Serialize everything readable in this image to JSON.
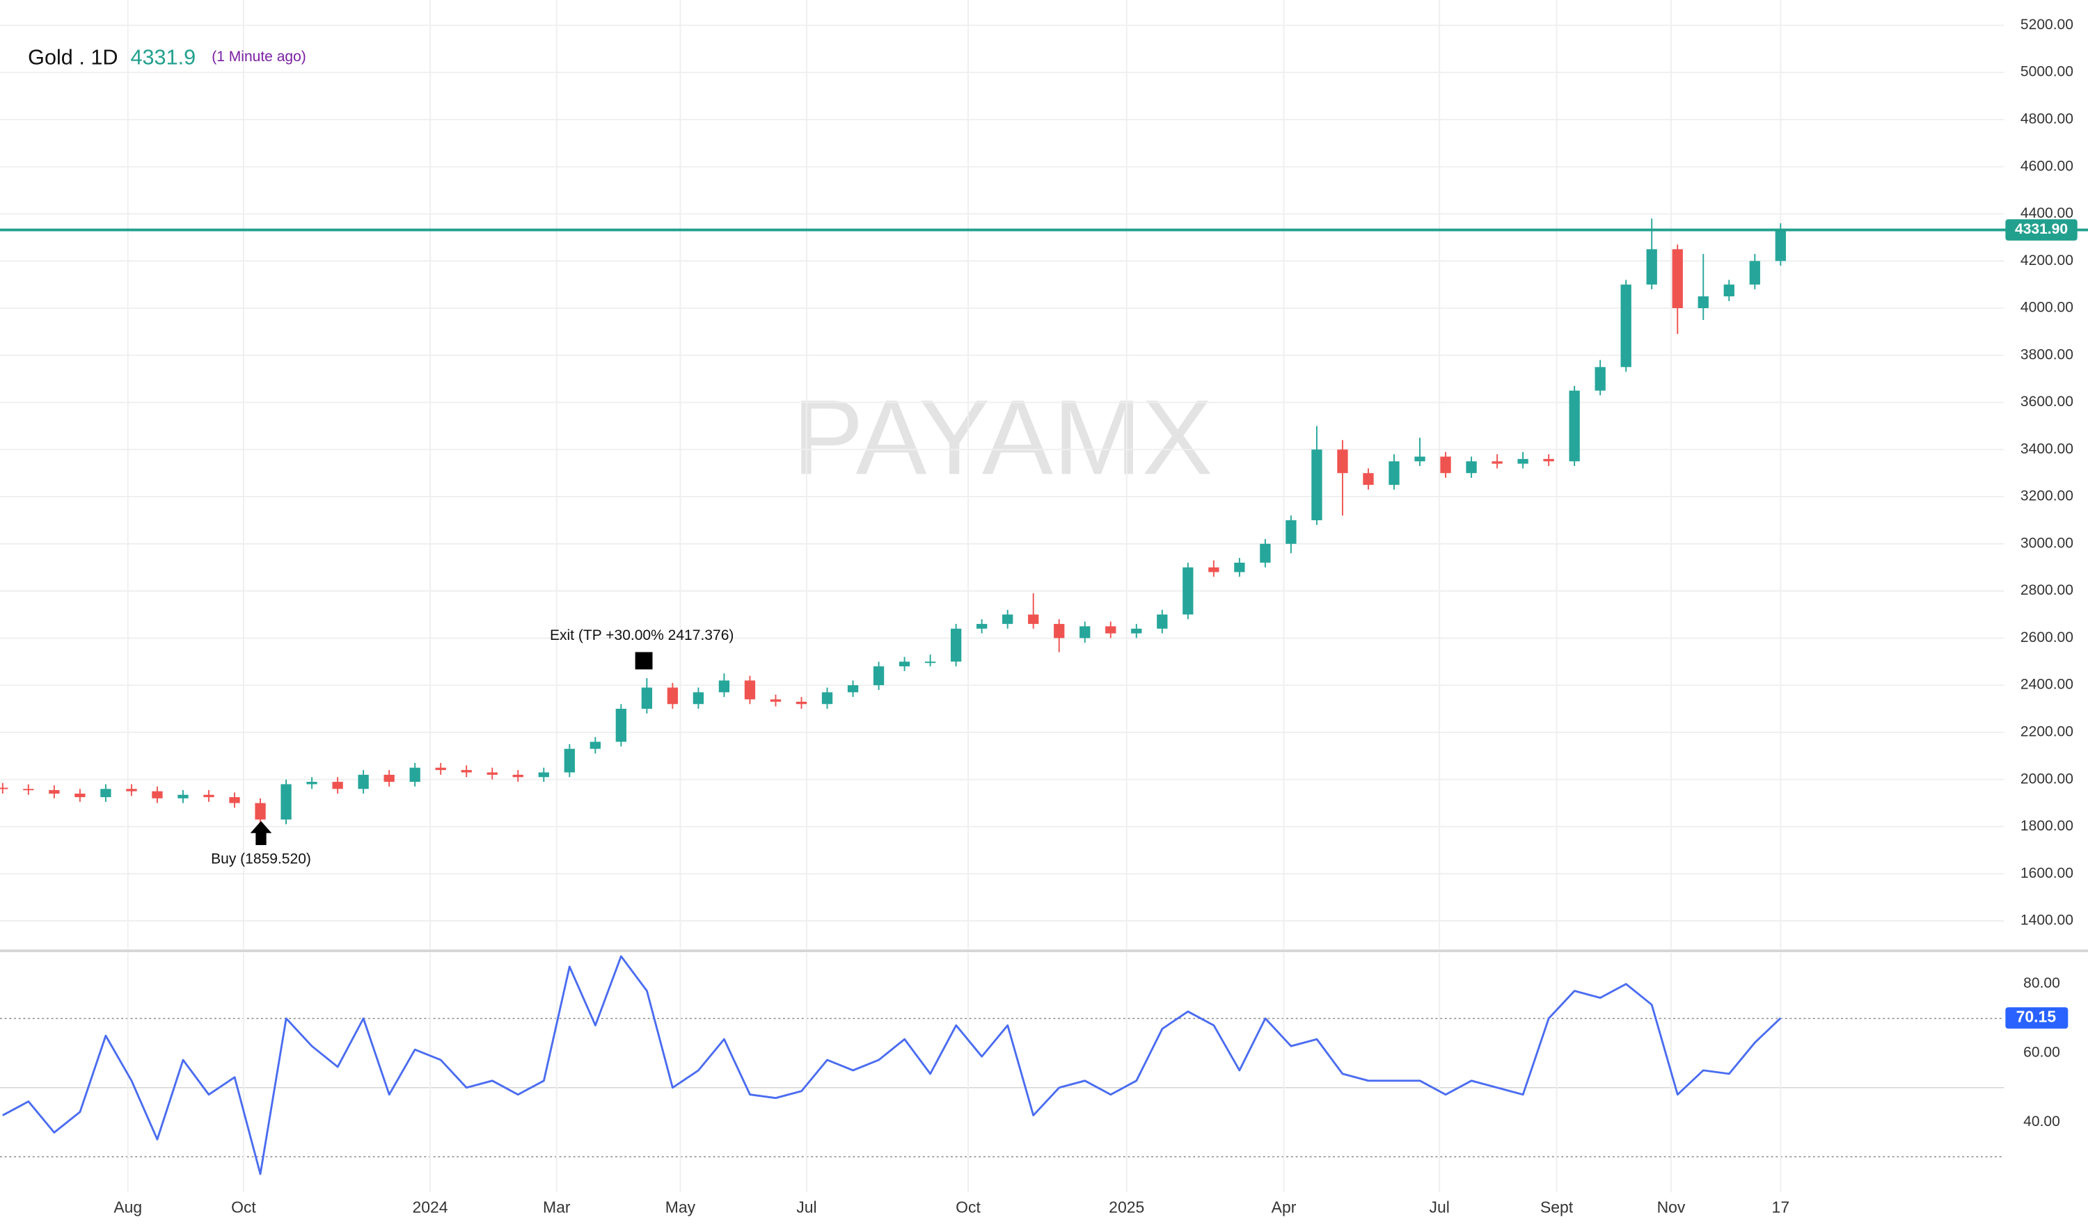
{
  "chart_data": [
    {
      "type": "candlestick",
      "title": "Gold . 1D",
      "last_price": 4331.9,
      "last_update": "(1 Minute ago)",
      "watermark": "PAYAMX",
      "annotations": [
        "Exit (TP +30.00% 2417.376)",
        "Buy (1859.520)"
      ],
      "up_color": "#26a69a",
      "down_color": "#ef5350",
      "grid": true,
      "categories": [
        null,
        null,
        null,
        null,
        null,
        null,
        null,
        null,
        null,
        null,
        null,
        null,
        null,
        null,
        null,
        null,
        null,
        null,
        null,
        null,
        null,
        null,
        null,
        null,
        null,
        null,
        null,
        null,
        null,
        null,
        null,
        null,
        null,
        null,
        null,
        null,
        null,
        null,
        null,
        null,
        null,
        null,
        null,
        null,
        null,
        null,
        null,
        null,
        null,
        null,
        null,
        null,
        null,
        null,
        null,
        null,
        null,
        null,
        null,
        null,
        null,
        null,
        null,
        null,
        null,
        null,
        null,
        null,
        null,
        null
      ],
      "open": [
        1965,
        1960,
        1955,
        1940,
        1925,
        1960,
        1950,
        1920,
        1935,
        1925,
        1900,
        1830,
        1980,
        1990,
        1960,
        2020,
        1990,
        2050,
        2040,
        2030,
        2020,
        2010,
        2030,
        2130,
        2160,
        2300,
        2390,
        2320,
        2370,
        2420,
        2340,
        2330,
        2320,
        2370,
        2400,
        2480,
        2500,
        2500,
        2640,
        2660,
        2700,
        2660,
        2600,
        2650,
        2620,
        2640,
        2700,
        2900,
        2880,
        2920,
        3000,
        3100,
        3400,
        3300,
        3250,
        3350,
        3370,
        3300,
        3350,
        3340,
        3360,
        3350,
        3650,
        3750,
        4100,
        4250,
        4000,
        4050,
        4100,
        4200
      ],
      "high": [
        1985,
        1980,
        1975,
        1960,
        1980,
        1980,
        1970,
        1955,
        1955,
        1945,
        1920,
        2000,
        2010,
        2010,
        2040,
        2040,
        2070,
        2070,
        2060,
        2050,
        2040,
        2050,
        2150,
        2180,
        2320,
        2430,
        2410,
        2390,
        2450,
        2440,
        2360,
        2350,
        2390,
        2420,
        2500,
        2520,
        2530,
        2660,
        2680,
        2720,
        2790,
        2680,
        2670,
        2670,
        2660,
        2720,
        2920,
        2930,
        2940,
        3020,
        3120,
        3500,
        3440,
        3320,
        3380,
        3450,
        3390,
        3370,
        3380,
        3390,
        3380,
        3670,
        3780,
        4120,
        4380,
        4270,
        4230,
        4120,
        4230,
        4360
      ],
      "low": [
        1940,
        1935,
        1920,
        1905,
        1905,
        1930,
        1900,
        1900,
        1905,
        1880,
        1810,
        1810,
        1960,
        1940,
        1940,
        1970,
        1970,
        2020,
        2010,
        2000,
        1990,
        1990,
        2010,
        2110,
        2140,
        2280,
        2300,
        2300,
        2350,
        2320,
        2310,
        2300,
        2300,
        2350,
        2380,
        2460,
        2480,
        2480,
        2620,
        2640,
        2640,
        2540,
        2580,
        2600,
        2600,
        2620,
        2680,
        2860,
        2860,
        2900,
        2960,
        3080,
        3120,
        3230,
        3230,
        3330,
        3280,
        3280,
        3320,
        3320,
        3330,
        3330,
        3630,
        3730,
        4080,
        3890,
        3950,
        4030,
        4080,
        4180
      ],
      "close": [
        1960,
        1955,
        1940,
        1925,
        1960,
        1950,
        1920,
        1935,
        1925,
        1900,
        1830,
        1980,
        1990,
        1960,
        2020,
        1990,
        2050,
        2040,
        2030,
        2020,
        2010,
        2030,
        2130,
        2160,
        2300,
        2390,
        2320,
        2370,
        2420,
        2340,
        2330,
        2320,
        2370,
        2400,
        2480,
        2500,
        2500,
        2640,
        2660,
        2700,
        2660,
        2600,
        2650,
        2620,
        2640,
        2700,
        2900,
        2880,
        2920,
        3000,
        3100,
        3400,
        3300,
        3250,
        3350,
        3370,
        3300,
        3350,
        3340,
        3360,
        3350,
        3650,
        3750,
        4100,
        4250,
        4000,
        4050,
        4100,
        4200,
        4330
      ],
      "price_line": {
        "value": 4331.9,
        "label": "4331.90",
        "color": "#22a08e"
      },
      "ylim": [
        1265,
        5265
      ],
      "yticks": [
        {
          "value": 1400,
          "label": "1400.00"
        },
        {
          "value": 1600,
          "label": "1600.00"
        },
        {
          "value": 1800,
          "label": "1800.00"
        },
        {
          "value": 2000,
          "label": "2000.00"
        },
        {
          "value": 2200,
          "label": "2200.00"
        },
        {
          "value": 2400,
          "label": "2400.00"
        },
        {
          "value": 2600,
          "label": "2600.00"
        },
        {
          "value": 2800,
          "label": "2800.00"
        },
        {
          "value": 3000,
          "label": "3000.00"
        },
        {
          "value": 3200,
          "label": "3200.00"
        },
        {
          "value": 3400,
          "label": "3400.00"
        },
        {
          "value": 3600,
          "label": "3600.00"
        },
        {
          "value": 3800,
          "label": "3800.00"
        },
        {
          "value": 4000,
          "label": "4000.00"
        },
        {
          "value": 4200,
          "label": "4200.00"
        },
        {
          "value": 4400,
          "label": "4400.00"
        },
        {
          "value": 4600,
          "label": "4600.00"
        },
        {
          "value": 4800,
          "label": "4800.00"
        },
        {
          "value": 5000,
          "label": "5000.00"
        },
        {
          "value": 5200,
          "label": "5200.00"
        }
      ]
    },
    {
      "type": "line",
      "color": "#4a6cf0",
      "label_color": "#2962ff",
      "values": [
        42,
        46,
        37,
        43,
        65,
        52,
        35,
        58,
        48,
        53,
        25,
        70,
        62,
        56,
        70,
        48,
        61,
        58,
        50,
        52,
        48,
        52,
        85,
        68,
        88,
        78,
        50,
        55,
        64,
        48,
        47,
        49,
        58,
        55,
        58,
        64,
        54,
        68,
        59,
        68,
        42,
        50,
        52,
        48,
        52,
        67,
        72,
        68,
        55,
        70,
        62,
        64,
        54,
        52,
        52,
        52,
        48,
        52,
        50,
        48,
        70,
        78,
        76,
        80,
        74,
        48,
        55,
        54,
        63,
        70.15
      ],
      "ref_lines": [
        70,
        50,
        30
      ],
      "ylim": [
        22,
        89
      ],
      "yticks": [
        {
          "value": 40,
          "label": "40.00"
        },
        {
          "value": 60,
          "label": "60.00"
        },
        {
          "value": 80,
          "label": "80.00"
        }
      ],
      "xticks": [
        {
          "value": 4.86,
          "label": "Aug"
        },
        {
          "value": 9.35,
          "label": "Oct"
        },
        {
          "value": 16.59,
          "label": "2024"
        },
        {
          "value": 21.5,
          "label": "Mar"
        },
        {
          "value": 26.3,
          "label": "May"
        },
        {
          "value": 31.2,
          "label": "Jul"
        },
        {
          "value": 37.47,
          "label": "Oct"
        },
        {
          "value": 43.62,
          "label": "2025"
        },
        {
          "value": 49.72,
          "label": "Apr"
        },
        {
          "value": 55.76,
          "label": "Jul"
        },
        {
          "value": 60.31,
          "label": "Sept"
        },
        {
          "value": 64.75,
          "label": "Nov"
        },
        {
          "value": 69,
          "label": "17"
        }
      ]
    }
  ]
}
